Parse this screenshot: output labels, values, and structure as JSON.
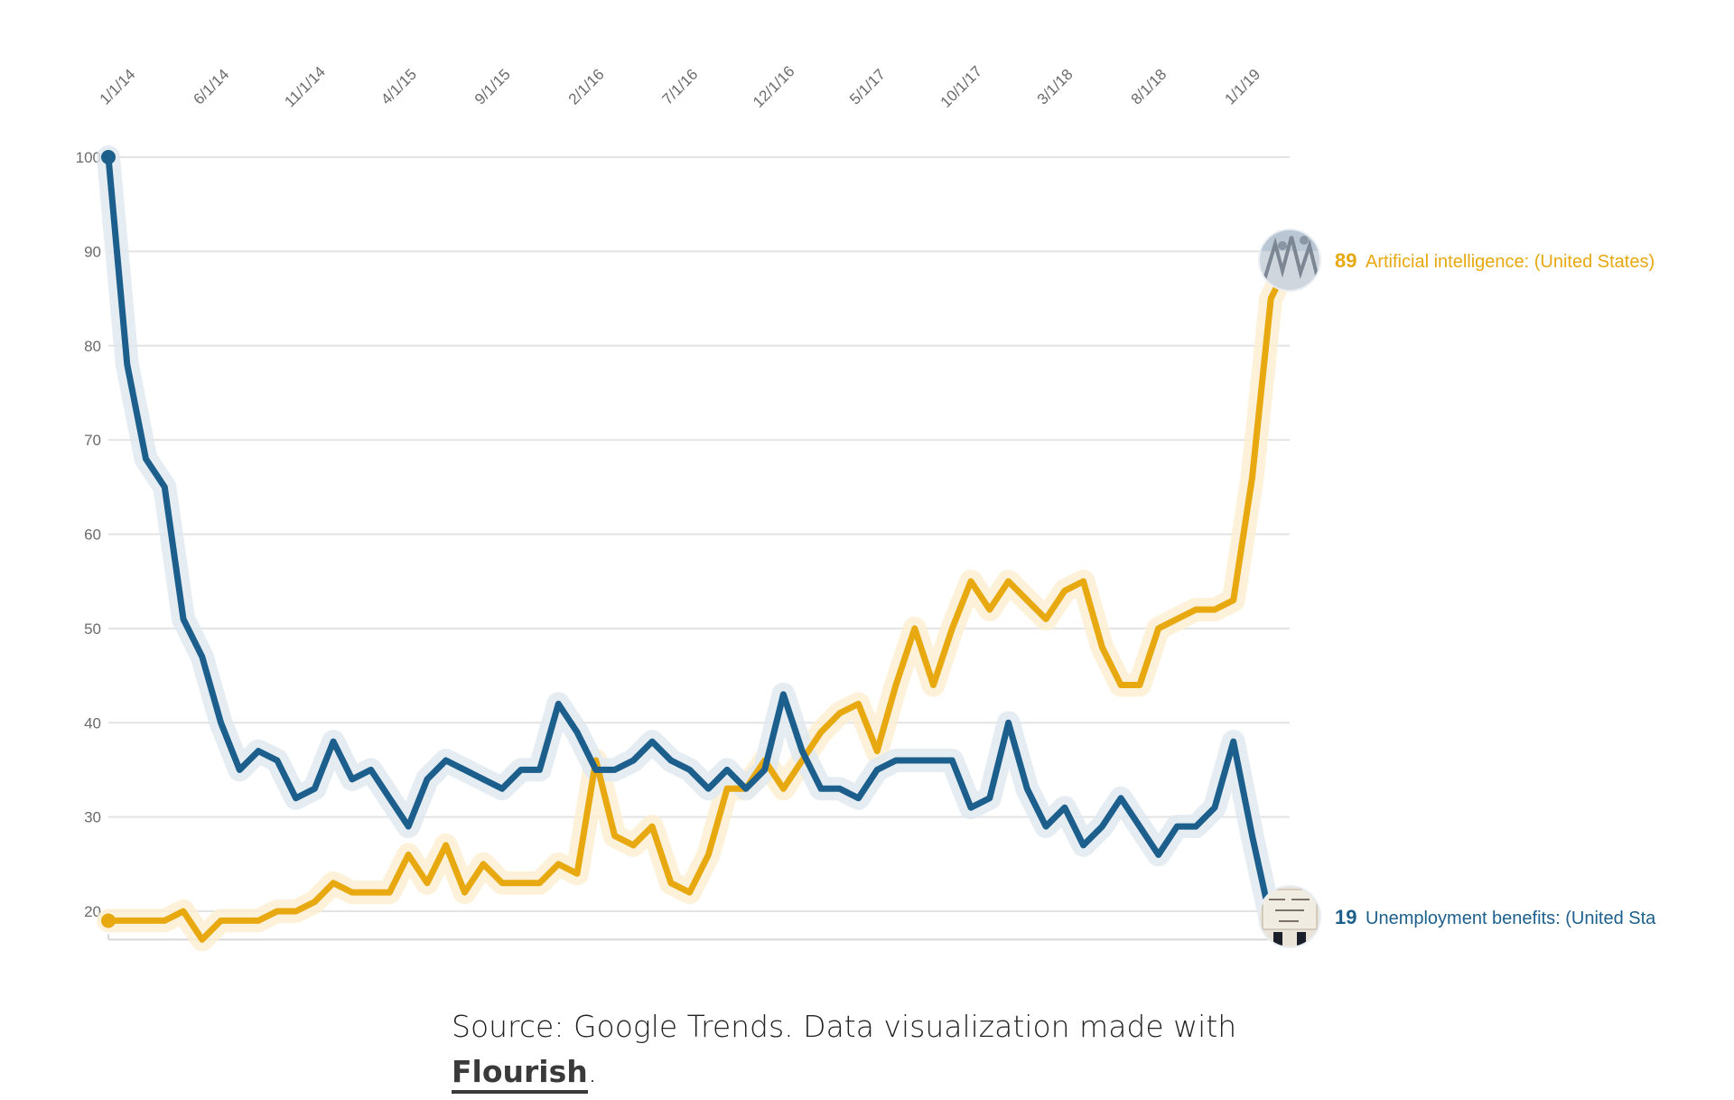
{
  "chart_data": {
    "type": "line",
    "x": [
      "1/1/14",
      "2/1/14",
      "3/1/14",
      "4/1/14",
      "5/1/14",
      "6/1/14",
      "7/1/14",
      "8/1/14",
      "9/1/14",
      "10/1/14",
      "11/1/14",
      "12/1/14",
      "1/1/15",
      "2/1/15",
      "3/1/15",
      "4/1/15",
      "5/1/15",
      "6/1/15",
      "7/1/15",
      "8/1/15",
      "9/1/15",
      "10/1/15",
      "11/1/15",
      "12/1/15",
      "1/1/16",
      "2/1/16",
      "3/1/16",
      "4/1/16",
      "5/1/16",
      "6/1/16",
      "7/1/16",
      "8/1/16",
      "9/1/16",
      "10/1/16",
      "11/1/16",
      "12/1/16",
      "1/1/17",
      "2/1/17",
      "3/1/17",
      "4/1/17",
      "5/1/17",
      "6/1/17",
      "7/1/17",
      "8/1/17",
      "9/1/17",
      "10/1/17",
      "11/1/17",
      "12/1/17",
      "1/1/18",
      "2/1/18",
      "3/1/18",
      "4/1/18",
      "5/1/18",
      "6/1/18",
      "7/1/18",
      "8/1/18",
      "9/1/18",
      "10/1/18",
      "11/1/18",
      "12/1/18",
      "1/1/19",
      "2/1/19",
      "3/1/19",
      "4/1/19"
    ],
    "x_tick_labels": [
      "1/1/14",
      "6/1/14",
      "11/1/14",
      "4/1/15",
      "9/1/15",
      "2/1/16",
      "7/1/16",
      "12/1/16",
      "5/1/17",
      "10/1/17",
      "3/1/18",
      "8/1/18",
      "1/1/19"
    ],
    "y_ticks": [
      "20",
      "30",
      "40",
      "50",
      "60",
      "70",
      "80",
      "90",
      "100"
    ],
    "ylim": [
      17,
      100
    ],
    "grid": true,
    "series": [
      {
        "name": "Unemployment benefits: (United States)",
        "color": "#1d5f8c",
        "end_label_value": "19",
        "end_label_name": "Unemployment benefits: (United Sta",
        "end_icon": "job-seeker-photo",
        "values": [
          100,
          78,
          68,
          65,
          51,
          47,
          40,
          35,
          37,
          36,
          32,
          33,
          38,
          34,
          35,
          32,
          29,
          34,
          36,
          35,
          34,
          33,
          35,
          35,
          42,
          39,
          35,
          35,
          36,
          38,
          36,
          35,
          33,
          35,
          33,
          35,
          43,
          37,
          33,
          33,
          32,
          35,
          36,
          36,
          36,
          36,
          31,
          32,
          40,
          33,
          29,
          31,
          27,
          29,
          32,
          29,
          26,
          29,
          29,
          31,
          38,
          28,
          19,
          19
        ]
      },
      {
        "name": "Artificial intelligence: (United States)",
        "color": "#e8a810",
        "end_label_value": "89",
        "end_label_name": "Artificial intelligence: (United States)",
        "end_icon": "robot-photo",
        "values": [
          19,
          19,
          19,
          19,
          20,
          17,
          19,
          19,
          19,
          20,
          20,
          21,
          23,
          22,
          22,
          22,
          26,
          23,
          27,
          22,
          25,
          23,
          23,
          23,
          25,
          24,
          36,
          28,
          27,
          29,
          23,
          22,
          26,
          33,
          33,
          36,
          33,
          36,
          39,
          41,
          42,
          37,
          44,
          50,
          44,
          50,
          55,
          52,
          55,
          53,
          51,
          54,
          55,
          48,
          44,
          44,
          50,
          51,
          52,
          52,
          53,
          66,
          85,
          89
        ]
      }
    ]
  },
  "caption": {
    "text": "Source: Google Trends. Data visualization made with",
    "link_text": "Flourish",
    "end": "."
  }
}
